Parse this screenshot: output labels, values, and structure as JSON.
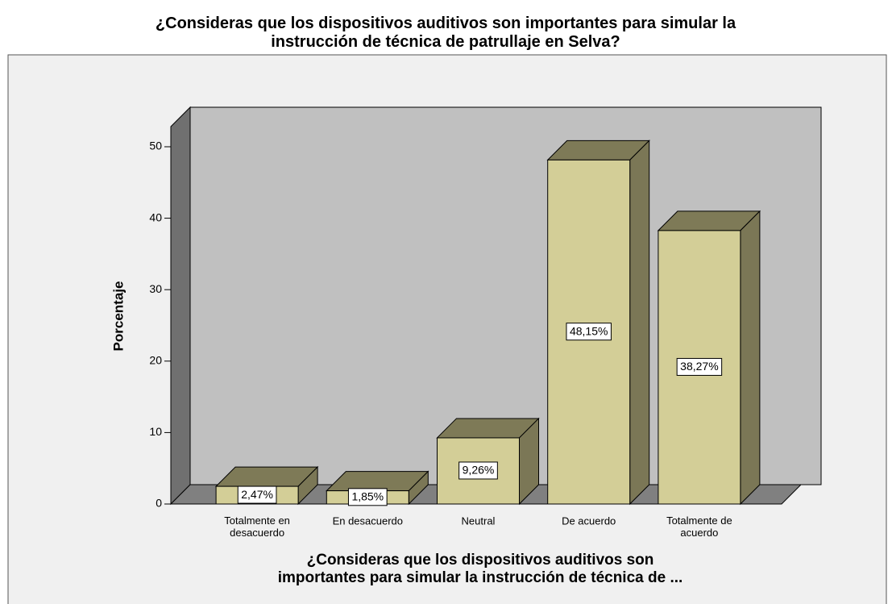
{
  "chart_data": {
    "type": "bar3d",
    "title": "¿Consideras que los dispositivos auditivos son importantes para simular la\ninstrucción de técnica de patrullaje en Selva?",
    "x_label": "¿Consideras que los dispositivos auditivos son\nimportantes para simular la instrucción de técnica de ...",
    "y_label": "Porcentaje",
    "categories": [
      "Totalmente en\ndesacuerdo",
      "En desacuerdo",
      "Neutral",
      "De acuerdo",
      "Totalmente de\nacuerdo"
    ],
    "values": [
      2.47,
      1.85,
      9.26,
      48.15,
      38.27
    ],
    "value_labels": [
      "2,47%",
      "1,85%",
      "9,26%",
      "48,15%",
      "38,27%"
    ],
    "color": "#d3ce97",
    "ylim": [
      0,
      53
    ],
    "yticks": [
      0,
      10,
      20,
      30,
      40,
      50
    ]
  }
}
